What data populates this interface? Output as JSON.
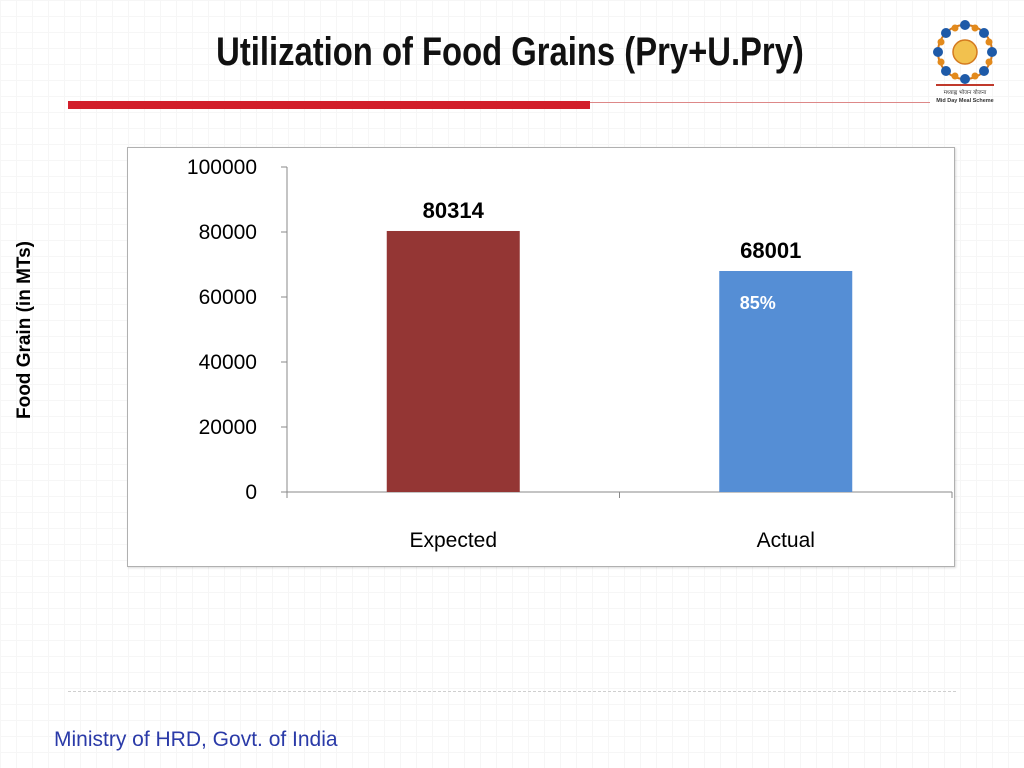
{
  "slide": {
    "title": "Utilization of Food Grains (Pry+U.Pry)",
    "footer": "Ministry of HRD, Govt. of India",
    "logo_icon": "mid-day-meal-scheme-logo",
    "logo_text_1": "मध्याह्न भोजन योजना",
    "logo_text_2": "Mid Day Meal Scheme"
  },
  "colors": {
    "accent_red": "#d21f2b",
    "expected_bar": "#943634",
    "actual_bar": "#558ed5",
    "footer_text": "#2a3aa8"
  },
  "chart_data": {
    "type": "bar",
    "title": "",
    "xlabel": "",
    "ylabel": "Food Grain (in MTs)",
    "categories": [
      "Expected",
      "Actual"
    ],
    "values": [
      80314,
      68001
    ],
    "data_labels": [
      "80314",
      "68001"
    ],
    "annotations": [
      {
        "category": "Actual",
        "text": "85%"
      }
    ],
    "ylim": [
      0,
      100000
    ],
    "yticks": [
      0,
      20000,
      40000,
      60000,
      80000,
      100000
    ],
    "ytick_labels": [
      "0",
      "20000",
      "40000",
      "60000",
      "80000",
      "100000"
    ],
    "grid": false,
    "legend": "none"
  }
}
